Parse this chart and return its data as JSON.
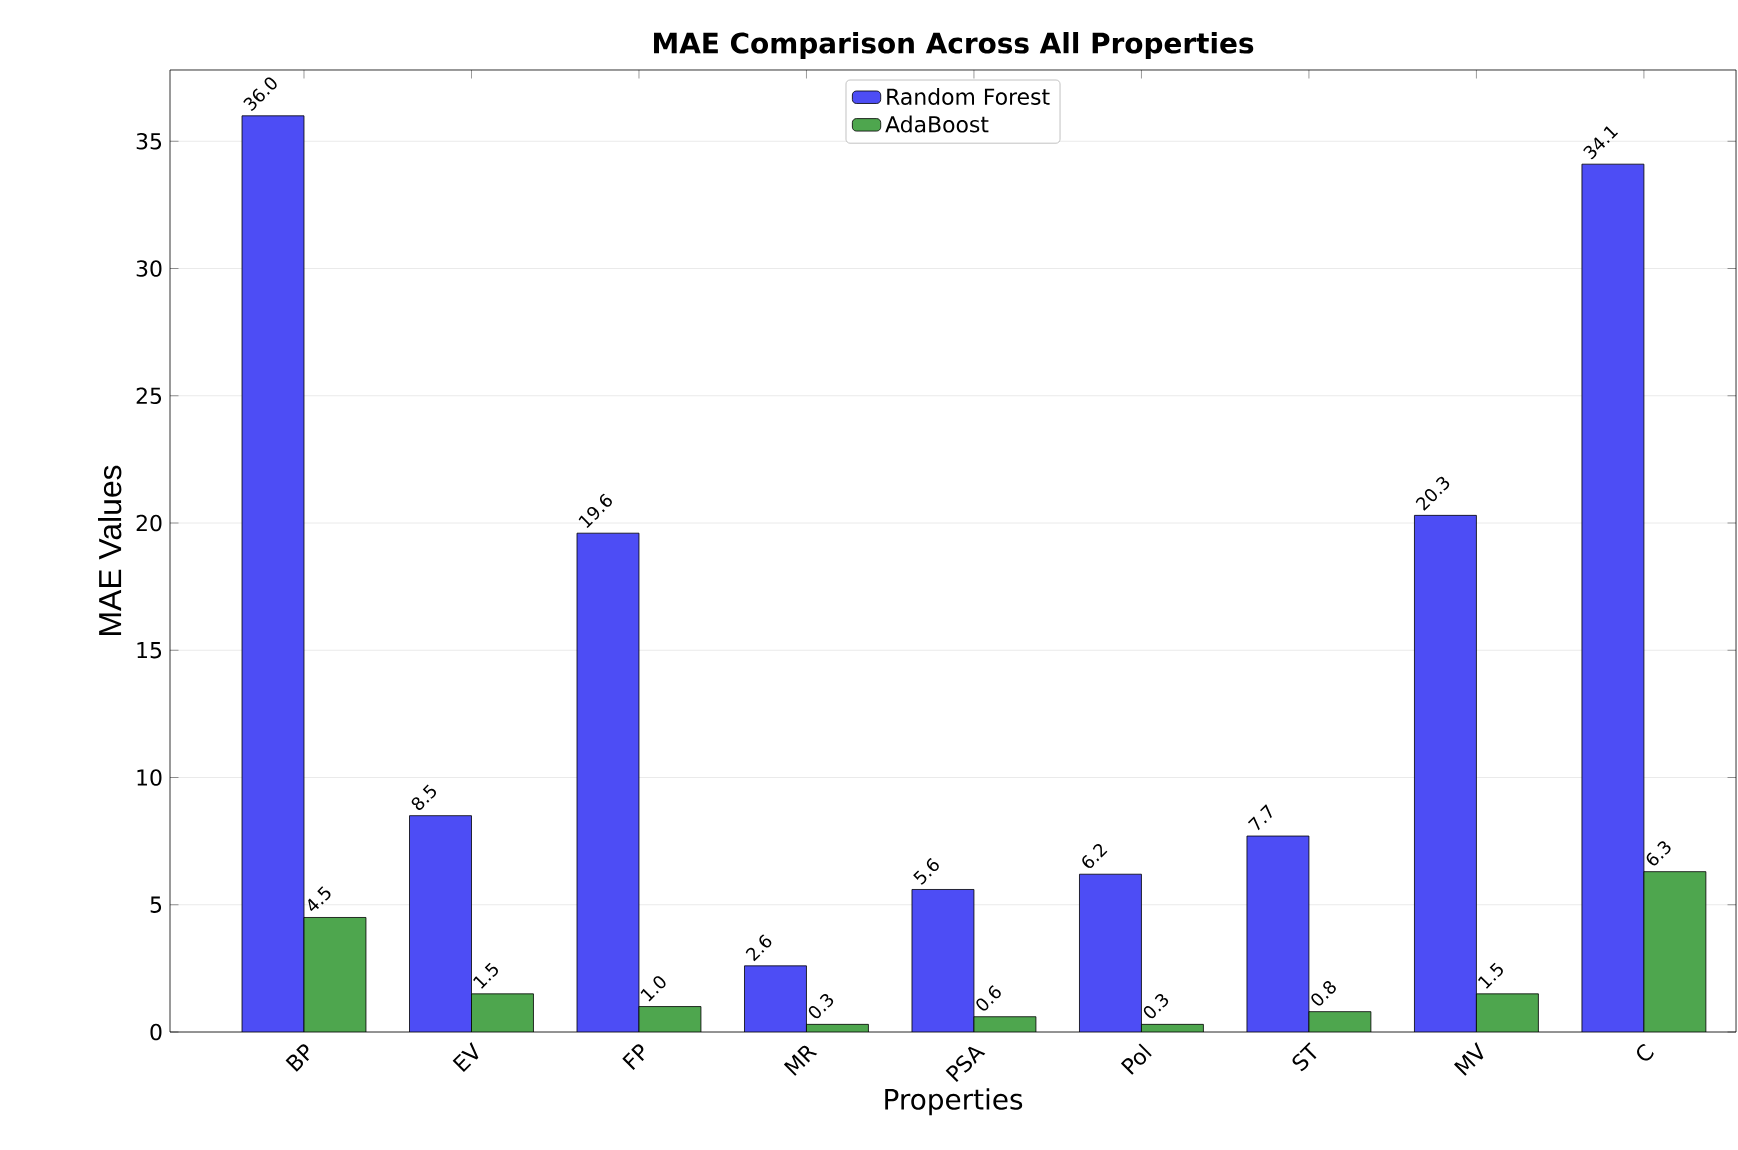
{
  "chart_data": {
    "type": "bar",
    "title": "MAE Comparison Across All Properties",
    "xlabel": "Properties",
    "ylabel": "MAE Values",
    "categories": [
      "BP",
      "EV",
      "FP",
      "MR",
      "PSA",
      "Pol",
      "ST",
      "MV",
      "C"
    ],
    "series": [
      {
        "name": "Random Forest",
        "color": "#4d4df5",
        "values": [
          36.0,
          8.5,
          19.6,
          2.6,
          5.6,
          6.2,
          7.7,
          20.3,
          34.1
        ],
        "value_labels": [
          "36.0",
          "8.5",
          "19.6",
          "2.6",
          "5.6",
          "6.2",
          "7.7",
          "20.3",
          "34.1"
        ]
      },
      {
        "name": "AdaBoost",
        "color": "#4ea64e",
        "values": [
          4.5,
          1.5,
          1.0,
          0.3,
          0.6,
          0.3,
          0.8,
          1.5,
          6.3
        ],
        "value_labels": [
          "4.5",
          "1.5",
          "1.0",
          "0.3",
          "0.6",
          "0.3",
          "0.8",
          "1.5",
          "6.3"
        ]
      }
    ],
    "ylim": [
      0,
      37.8
    ],
    "yticks": [
      0,
      5,
      10,
      15,
      20,
      25,
      30,
      35
    ],
    "grid": "y",
    "legend": "top"
  }
}
